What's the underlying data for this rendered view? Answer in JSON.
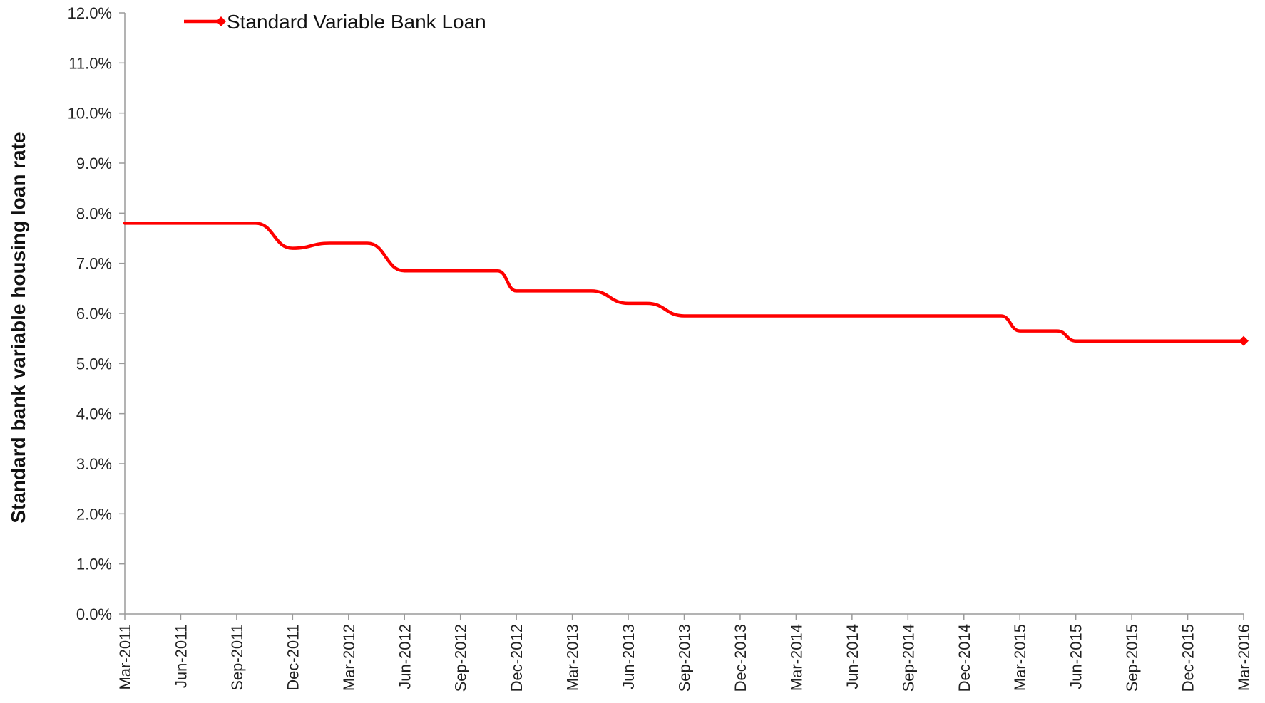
{
  "chart_data": {
    "type": "line",
    "title": "",
    "ylabel": "Standard bank variable housing loan rate",
    "xlabel": "",
    "ylim": [
      0,
      12
    ],
    "y_ticks": [
      "0.0%",
      "1.0%",
      "2.0%",
      "3.0%",
      "4.0%",
      "5.0%",
      "6.0%",
      "7.0%",
      "8.0%",
      "9.0%",
      "10.0%",
      "11.0%",
      "12.0%"
    ],
    "x_ticks": [
      "Mar-2011",
      "Jun-2011",
      "Sep-2011",
      "Dec-2011",
      "Mar-2012",
      "Jun-2012",
      "Sep-2012",
      "Dec-2012",
      "Mar-2013",
      "Jun-2013",
      "Sep-2013",
      "Dec-2013",
      "Mar-2014",
      "Jun-2014",
      "Sep-2014",
      "Dec-2014",
      "Mar-2015",
      "Jun-2015",
      "Sep-2015",
      "Dec-2015",
      "Mar-2016"
    ],
    "grid": false,
    "legend": "top-left",
    "series": [
      {
        "name": "Standard Variable Bank Loan",
        "color": "#ff0000",
        "points": [
          {
            "x": "Mar-2011",
            "y": 7.8
          },
          {
            "x": "Oct-2011",
            "y": 7.8
          },
          {
            "x": "Dec-2011",
            "y": 7.3
          },
          {
            "x": "Feb-2012",
            "y": 7.4
          },
          {
            "x": "Apr-2012",
            "y": 7.4
          },
          {
            "x": "Jun-2012",
            "y": 6.85
          },
          {
            "x": "Nov-2012",
            "y": 6.85
          },
          {
            "x": "Dec-2012",
            "y": 6.45
          },
          {
            "x": "Apr-2013",
            "y": 6.45
          },
          {
            "x": "Jun-2013",
            "y": 6.2
          },
          {
            "x": "Jul-2013",
            "y": 6.2
          },
          {
            "x": "Sep-2013",
            "y": 5.95
          },
          {
            "x": "Feb-2015",
            "y": 5.95
          },
          {
            "x": "Mar-2015",
            "y": 5.65
          },
          {
            "x": "May-2015",
            "y": 5.65
          },
          {
            "x": "Jun-2015",
            "y": 5.45
          },
          {
            "x": "Mar-2016",
            "y": 5.45
          }
        ]
      }
    ]
  }
}
